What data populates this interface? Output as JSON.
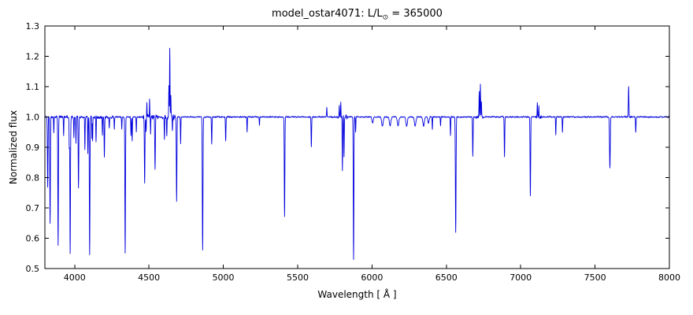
{
  "chart_data": {
    "type": "line",
    "title": "model_ostar4071: L/L⊙ = 365000",
    "title_parts": {
      "pre": "model_ostar4071: L/L",
      "sun": "⊙",
      "post": " = 365000"
    },
    "xlabel": "Wavelength [ Å ]",
    "ylabel": "Normalized flux",
    "xlim": [
      3800,
      8000
    ],
    "ylim": [
      0.5,
      1.3
    ],
    "xticks": [
      4000,
      4500,
      5000,
      5500,
      6000,
      6500,
      7000,
      7500,
      8000
    ],
    "xtick_labels": [
      "4000",
      "4500",
      "5000",
      "5500",
      "6000",
      "6500",
      "7000",
      "7500",
      "8000"
    ],
    "yticks": [
      0.5,
      0.6,
      0.7,
      0.8,
      0.9,
      1.0,
      1.1,
      1.2,
      1.3
    ],
    "ytick_labels": [
      "0.5",
      "0.6",
      "0.7",
      "0.8",
      "0.9",
      "1.0",
      "1.1",
      "1.2",
      "1.3"
    ],
    "grid": false,
    "legend": "none",
    "line_color": "#0000dd",
    "axes_color": "#000000",
    "background_color": "#ffffff",
    "continuum": 1.0,
    "features": [
      [
        3819,
        -0.23,
        2.0
      ],
      [
        3835,
        -0.35,
        2.0
      ],
      [
        3860,
        -0.05,
        1.5
      ],
      [
        3889,
        -0.42,
        2.0
      ],
      [
        3926,
        -0.06,
        1.5
      ],
      [
        3964,
        -0.1,
        1.5
      ],
      [
        3970,
        -0.45,
        2.0
      ],
      [
        3995,
        -0.07,
        1.5
      ],
      [
        4009,
        -0.09,
        1.5
      ],
      [
        4026,
        -0.23,
        2.0
      ],
      [
        4069,
        -0.11,
        1.5
      ],
      [
        4089,
        -0.12,
        1.5
      ],
      [
        4101,
        -0.45,
        2.0
      ],
      [
        4116,
        -0.07,
        1.2
      ],
      [
        4121,
        -0.08,
        1.2
      ],
      [
        4144,
        -0.08,
        1.5
      ],
      [
        4187,
        -0.06,
        1.5
      ],
      [
        4200,
        -0.13,
        1.8
      ],
      [
        4233,
        -0.04,
        1.5
      ],
      [
        4267,
        -0.04,
        1.5
      ],
      [
        4317,
        -0.04,
        1.5
      ],
      [
        4340,
        -0.45,
        2.0
      ],
      [
        4379,
        -0.06,
        1.5
      ],
      [
        4387,
        -0.08,
        1.5
      ],
      [
        4415,
        -0.05,
        1.5
      ],
      [
        4471,
        -0.22,
        2.0
      ],
      [
        4481,
        -0.05,
        1.2
      ],
      [
        4486,
        0.05,
        1.2
      ],
      [
        4504,
        0.06,
        1.2
      ],
      [
        4511,
        -0.06,
        1.2
      ],
      [
        4541,
        -0.17,
        2.0
      ],
      [
        4604,
        -0.08,
        1.5
      ],
      [
        4620,
        -0.06,
        1.5
      ],
      [
        4634,
        0.1,
        1.3
      ],
      [
        4640,
        0.23,
        1.5
      ],
      [
        4647,
        0.07,
        1.3
      ],
      [
        4658,
        -0.05,
        1.3
      ],
      [
        4686,
        -0.28,
        2.0
      ],
      [
        4713,
        -0.09,
        1.5
      ],
      [
        4861,
        -0.44,
        2.2
      ],
      [
        4922,
        -0.09,
        1.8
      ],
      [
        5016,
        -0.08,
        1.8
      ],
      [
        5160,
        -0.05,
        1.5
      ],
      [
        5243,
        -0.03,
        1.5
      ],
      [
        5412,
        -0.33,
        2.0
      ],
      [
        5592,
        -0.1,
        1.8
      ],
      [
        5696,
        0.03,
        1.5
      ],
      [
        5780,
        0.04,
        1.3
      ],
      [
        5790,
        0.05,
        1.3
      ],
      [
        5801,
        -0.18,
        1.6
      ],
      [
        5812,
        -0.13,
        1.6
      ],
      [
        5876,
        -0.47,
        2.0
      ],
      [
        5890,
        -0.05,
        1.5
      ],
      [
        6004,
        -0.02,
        4.0
      ],
      [
        6070,
        -0.03,
        5.0
      ],
      [
        6122,
        -0.03,
        5.0
      ],
      [
        6175,
        -0.03,
        5.0
      ],
      [
        6233,
        -0.03,
        5.0
      ],
      [
        6290,
        -0.03,
        5.0
      ],
      [
        6347,
        -0.03,
        5.0
      ],
      [
        6380,
        -0.02,
        4.0
      ],
      [
        6406,
        -0.04,
        1.5
      ],
      [
        6461,
        -0.03,
        1.5
      ],
      [
        6528,
        -0.06,
        1.6
      ],
      [
        6563,
        -0.38,
        2.2
      ],
      [
        6678,
        -0.13,
        1.8
      ],
      [
        6721,
        0.08,
        1.4
      ],
      [
        6729,
        0.11,
        1.5
      ],
      [
        6736,
        0.05,
        1.3
      ],
      [
        6891,
        -0.13,
        1.8
      ],
      [
        7065,
        -0.26,
        2.0
      ],
      [
        7112,
        0.05,
        1.4
      ],
      [
        7122,
        0.04,
        1.3
      ],
      [
        7236,
        -0.06,
        1.6
      ],
      [
        7281,
        -0.05,
        1.6
      ],
      [
        7600,
        -0.17,
        2.5
      ],
      [
        7726,
        0.1,
        1.8
      ],
      [
        7774,
        -0.05,
        1.8
      ]
    ],
    "noise": {
      "seed": 11,
      "base": 0.003,
      "bands": [
        {
          "from": 3800,
          "to": 4260,
          "amp": 0.006
        },
        {
          "from": 4460,
          "to": 4560,
          "amp": 0.01
        },
        {
          "from": 4590,
          "to": 4675,
          "amp": 0.012
        },
        {
          "from": 5770,
          "to": 5835,
          "amp": 0.01
        },
        {
          "from": 6700,
          "to": 6745,
          "amp": 0.01
        },
        {
          "from": 7100,
          "to": 7140,
          "amp": 0.008
        },
        {
          "from": 7700,
          "to": 7745,
          "amp": 0.006
        }
      ]
    }
  }
}
